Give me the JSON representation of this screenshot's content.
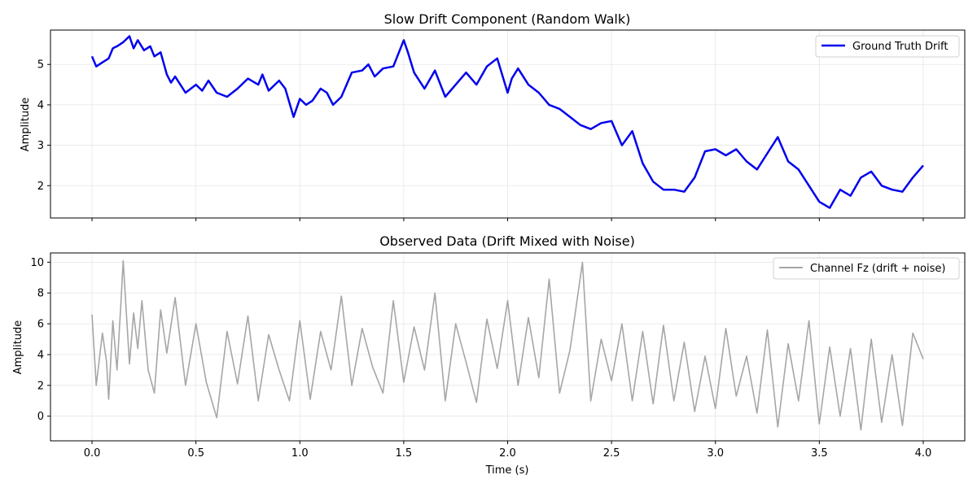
{
  "figure": {
    "xlabel": "Time (s)"
  },
  "chart_data": [
    {
      "type": "line",
      "title": "Slow Drift Component (Random Walk)",
      "ylabel": "Amplitude",
      "xlabel": "",
      "xlim": [
        -0.2,
        4.2
      ],
      "ylim": [
        1.2,
        5.85
      ],
      "xticks": [
        0.0,
        0.5,
        1.0,
        1.5,
        2.0,
        2.5,
        3.0,
        3.5,
        4.0
      ],
      "yticks": [
        2,
        3,
        4,
        5
      ],
      "grid": true,
      "legend_position": "top-right",
      "series": [
        {
          "name": "Ground Truth Drift",
          "color": "#0000ee",
          "x": [
            0.0,
            0.02,
            0.05,
            0.08,
            0.1,
            0.12,
            0.15,
            0.18,
            0.2,
            0.22,
            0.25,
            0.28,
            0.3,
            0.33,
            0.36,
            0.38,
            0.4,
            0.45,
            0.5,
            0.53,
            0.56,
            0.6,
            0.65,
            0.7,
            0.75,
            0.8,
            0.82,
            0.85,
            0.9,
            0.93,
            0.97,
            1.0,
            1.03,
            1.06,
            1.1,
            1.13,
            1.16,
            1.2,
            1.25,
            1.3,
            1.33,
            1.36,
            1.4,
            1.45,
            1.5,
            1.52,
            1.55,
            1.6,
            1.65,
            1.7,
            1.75,
            1.8,
            1.85,
            1.9,
            1.95,
            2.0,
            2.02,
            2.05,
            2.1,
            2.15,
            2.2,
            2.25,
            2.3,
            2.35,
            2.4,
            2.45,
            2.5,
            2.55,
            2.6,
            2.65,
            2.7,
            2.75,
            2.8,
            2.85,
            2.9,
            2.95,
            3.0,
            3.05,
            3.1,
            3.15,
            3.2,
            3.25,
            3.3,
            3.35,
            3.4,
            3.45,
            3.5,
            3.55,
            3.6,
            3.65,
            3.7,
            3.75,
            3.8,
            3.85,
            3.9,
            3.95,
            4.0
          ],
          "y": [
            5.2,
            4.95,
            5.05,
            5.15,
            5.4,
            5.45,
            5.55,
            5.7,
            5.4,
            5.6,
            5.35,
            5.45,
            5.2,
            5.3,
            4.75,
            4.55,
            4.7,
            4.3,
            4.5,
            4.35,
            4.6,
            4.3,
            4.2,
            4.4,
            4.65,
            4.5,
            4.75,
            4.35,
            4.6,
            4.4,
            3.7,
            4.15,
            4.0,
            4.1,
            4.4,
            4.3,
            4.0,
            4.2,
            4.8,
            4.85,
            5.0,
            4.7,
            4.9,
            4.95,
            5.6,
            5.3,
            4.8,
            4.4,
            4.85,
            4.2,
            4.5,
            4.8,
            4.5,
            4.95,
            5.15,
            4.3,
            4.65,
            4.9,
            4.5,
            4.3,
            4.0,
            3.9,
            3.7,
            3.5,
            3.4,
            3.55,
            3.6,
            3.0,
            3.35,
            2.55,
            2.1,
            1.9,
            1.9,
            1.85,
            2.2,
            2.85,
            2.9,
            2.75,
            2.9,
            2.6,
            2.4,
            2.8,
            3.2,
            2.6,
            2.4,
            2.0,
            1.6,
            1.45,
            1.9,
            1.75,
            2.2,
            2.35,
            2.0,
            1.9,
            1.85,
            2.2,
            2.5
          ]
        }
      ]
    },
    {
      "type": "line",
      "title": "Observed Data (Drift Mixed with Noise)",
      "ylabel": "Amplitude",
      "xlabel": "Time (s)",
      "xlim": [
        -0.2,
        4.2
      ],
      "ylim": [
        -1.6,
        10.6
      ],
      "xticks": [
        0.0,
        0.5,
        1.0,
        1.5,
        2.0,
        2.5,
        3.0,
        3.5,
        4.0
      ],
      "yticks": [
        0,
        2,
        4,
        6,
        8,
        10
      ],
      "grid": true,
      "legend_position": "top-right",
      "series": [
        {
          "name": "Channel Fz (drift + noise)",
          "color": "#a6a6a6",
          "x": [
            0.0,
            0.02,
            0.05,
            0.07,
            0.08,
            0.1,
            0.12,
            0.14,
            0.15,
            0.18,
            0.2,
            0.22,
            0.24,
            0.27,
            0.3,
            0.33,
            0.36,
            0.4,
            0.45,
            0.5,
            0.55,
            0.6,
            0.65,
            0.7,
            0.75,
            0.8,
            0.85,
            0.9,
            0.95,
            1.0,
            1.05,
            1.1,
            1.15,
            1.2,
            1.25,
            1.3,
            1.35,
            1.4,
            1.45,
            1.5,
            1.55,
            1.6,
            1.65,
            1.7,
            1.75,
            1.8,
            1.85,
            1.9,
            1.95,
            2.0,
            2.05,
            2.1,
            2.15,
            2.2,
            2.25,
            2.3,
            2.36,
            2.4,
            2.45,
            2.5,
            2.55,
            2.6,
            2.65,
            2.7,
            2.75,
            2.8,
            2.85,
            2.9,
            2.95,
            3.0,
            3.05,
            3.1,
            3.15,
            3.2,
            3.25,
            3.3,
            3.35,
            3.4,
            3.45,
            3.5,
            3.55,
            3.6,
            3.65,
            3.7,
            3.75,
            3.8,
            3.85,
            3.9,
            3.95,
            4.0
          ],
          "y": [
            6.6,
            2.0,
            5.4,
            3.5,
            1.1,
            6.2,
            3.0,
            7.6,
            10.1,
            3.4,
            6.7,
            4.4,
            7.5,
            3.0,
            1.5,
            6.9,
            4.1,
            7.7,
            2.0,
            6.0,
            2.2,
            -0.1,
            5.5,
            2.1,
            6.5,
            1.0,
            5.3,
            3.0,
            1.0,
            6.2,
            1.1,
            5.5,
            3.0,
            7.8,
            2.0,
            5.7,
            3.2,
            1.5,
            7.5,
            2.2,
            5.8,
            3.0,
            8.0,
            1.0,
            6.0,
            3.5,
            0.9,
            6.3,
            3.1,
            7.5,
            2.0,
            6.4,
            2.5,
            8.9,
            1.5,
            4.3,
            10.0,
            1.0,
            5.0,
            2.3,
            6.0,
            1.0,
            5.5,
            0.8,
            5.9,
            1.0,
            4.8,
            0.3,
            3.9,
            0.5,
            5.7,
            1.3,
            3.9,
            0.2,
            5.6,
            -0.7,
            4.7,
            1.0,
            6.2,
            -0.5,
            4.5,
            0.0,
            4.4,
            -0.9,
            5.0,
            -0.4,
            4.0,
            -0.6,
            5.4,
            3.7
          ]
        }
      ]
    }
  ]
}
